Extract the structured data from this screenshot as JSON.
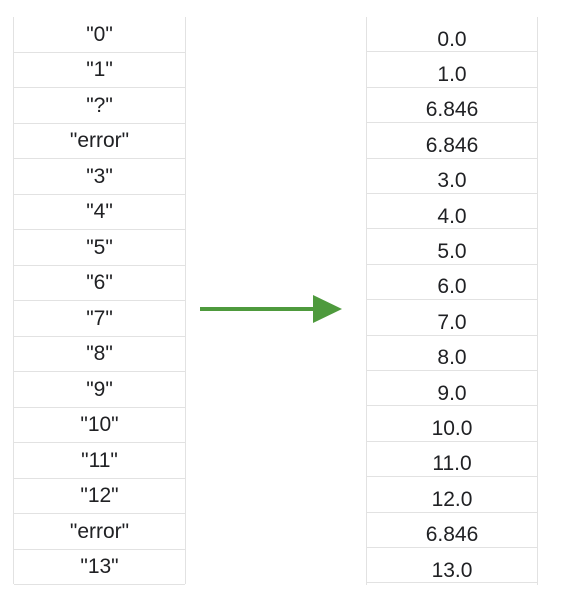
{
  "input_column": {
    "cells": [
      "\"0\"",
      "\"1\"",
      "\"?\"",
      "\"error\"",
      "\"3\"",
      "\"4\"",
      "\"5\"",
      "\"6\"",
      "\"7\"",
      "\"8\"",
      "\"9\"",
      "\"10\"",
      "\"11\"",
      "\"12\"",
      "\"error\"",
      "\"13\""
    ]
  },
  "output_column": {
    "cells": [
      "0.0",
      "1.0",
      "6.846",
      "6.846",
      "3.0",
      "4.0",
      "5.0",
      "6.0",
      "7.0",
      "8.0",
      "9.0",
      "10.0",
      "11.0",
      "12.0",
      "6.846",
      "13.0"
    ]
  },
  "arrow": {
    "color": "#4e9a3d",
    "icon": "right-arrow-icon"
  }
}
